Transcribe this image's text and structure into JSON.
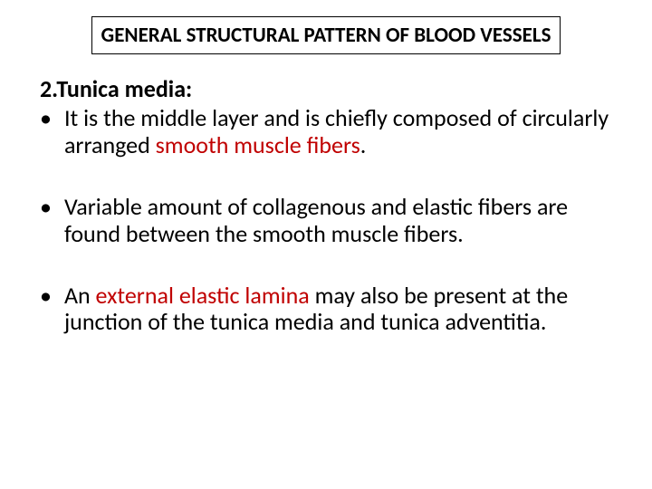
{
  "title": "GENERAL STRUCTURAL PATTERN OF BLOOD VESSELS",
  "heading": "2.Tunica media:",
  "bullets": {
    "b1_pre": "It is the middle layer and is chiefly composed of circularly arranged ",
    "b1_red": "smooth muscle fibers",
    "b1_post": ".",
    "b2": "Variable amount of collagenous and elastic fibers are found between the smooth muscle fibers.",
    "b3_pre": "An ",
    "b3_red": "external elastic lamina ",
    "b3_post": "may also be present at the junction of the tunica media  and tunica adventitia."
  },
  "colors": {
    "text": "#000000",
    "accent": "#c00000",
    "background": "#ffffff",
    "border": "#000000"
  }
}
